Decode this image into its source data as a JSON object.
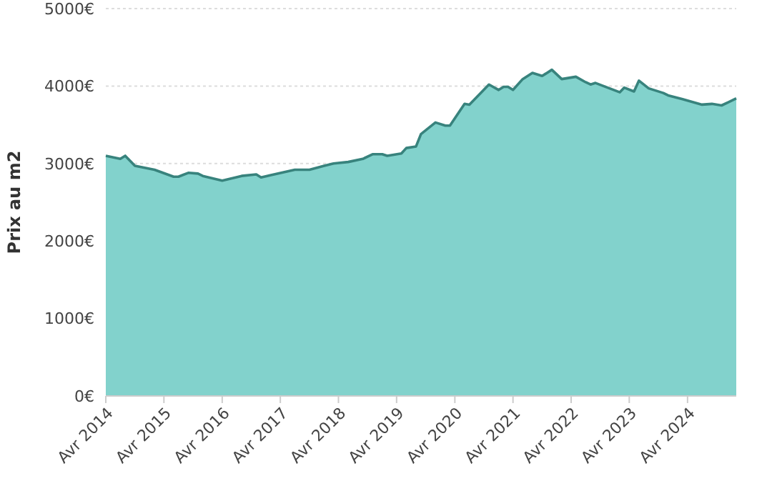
{
  "chart_data": {
    "type": "area",
    "ylabel": "Prix au m2",
    "grid": "y",
    "color": "#82d2cc",
    "x": [
      "2014-04",
      "2014-07",
      "2014-08",
      "2014-10",
      "2015-02",
      "2015-06",
      "2015-07",
      "2015-09",
      "2015-11",
      "2015-12",
      "2016-04",
      "2016-08",
      "2016-11",
      "2016-12",
      "2017-02",
      "2017-07",
      "2017-10",
      "2018-01",
      "2018-03",
      "2018-06",
      "2018-09",
      "2018-11",
      "2019-01",
      "2019-02",
      "2019-05",
      "2019-06",
      "2019-08",
      "2019-09",
      "2019-12",
      "2020-02",
      "2020-03",
      "2020-06",
      "2020-07",
      "2020-09",
      "2020-11",
      "2021-01",
      "2021-02",
      "2021-03",
      "2021-04",
      "2021-06",
      "2021-08",
      "2021-10",
      "2021-12",
      "2022-02",
      "2022-05",
      "2022-07",
      "2022-08",
      "2022-09",
      "2023-02",
      "2023-03",
      "2023-05",
      "2023-06",
      "2023-08",
      "2023-11",
      "2023-12",
      "2024-03",
      "2024-07",
      "2024-09",
      "2024-11",
      "2025-02"
    ],
    "values": [
      3100,
      3060,
      3100,
      2970,
      2920,
      2830,
      2830,
      2880,
      2870,
      2840,
      2780,
      2840,
      2860,
      2820,
      2850,
      2920,
      2920,
      2970,
      3000,
      3020,
      3060,
      3120,
      3120,
      3100,
      3130,
      3200,
      3220,
      3380,
      3530,
      3490,
      3490,
      3770,
      3760,
      3890,
      4020,
      3950,
      3990,
      3990,
      3950,
      4090,
      4170,
      4130,
      4210,
      4090,
      4120,
      4050,
      4020,
      4040,
      3920,
      3980,
      3930,
      4070,
      3970,
      3910,
      3880,
      3830,
      3760,
      3770,
      3750,
      3840
    ],
    "xlim": [
      "2014-04",
      "2025-02"
    ],
    "xticks": [
      {
        "value": "2014-04",
        "label": "Avr 2014"
      },
      {
        "value": "2015-04",
        "label": "Avr 2015"
      },
      {
        "value": "2016-04",
        "label": "Avr 2016"
      },
      {
        "value": "2017-04",
        "label": "Avr 2017"
      },
      {
        "value": "2018-04",
        "label": "Avr 2018"
      },
      {
        "value": "2019-04",
        "label": "Avr 2019"
      },
      {
        "value": "2020-04",
        "label": "Avr 2020"
      },
      {
        "value": "2021-04",
        "label": "Avr 2021"
      },
      {
        "value": "2022-04",
        "label": "Avr 2022"
      },
      {
        "value": "2023-04",
        "label": "Avr 2023"
      },
      {
        "value": "2024-04",
        "label": "Avr 2024"
      }
    ],
    "ylim": [
      0,
      5000
    ],
    "yticks": [
      {
        "value": 0,
        "label": "0€"
      },
      {
        "value": 1000,
        "label": "1000€"
      },
      {
        "value": 2000,
        "label": "2000€"
      },
      {
        "value": 3000,
        "label": "3000€"
      },
      {
        "value": 4000,
        "label": "4000€"
      },
      {
        "value": 5000,
        "label": "5000€"
      }
    ]
  }
}
